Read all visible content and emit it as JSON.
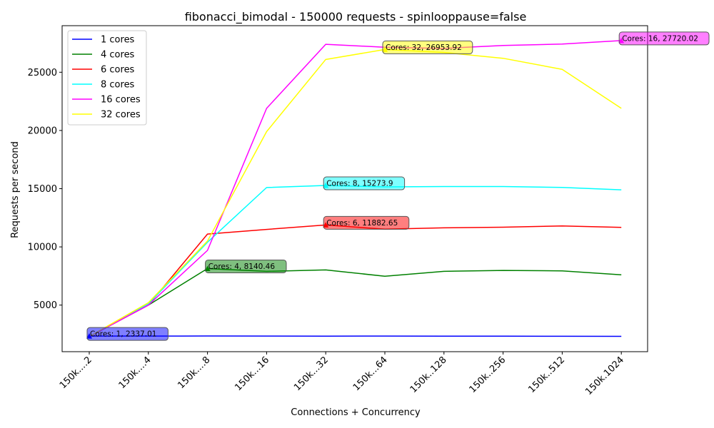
{
  "chart_data": {
    "type": "line",
    "title": "fibonacci_bimodal - 150000 requests - spinlooppause=false",
    "xlabel": "Connections + Concurrency",
    "ylabel": "Requests per second",
    "categories": [
      "150k....2",
      "150k....4",
      "150k....8",
      "150k...16",
      "150k...32",
      "150k...64",
      "150k..128",
      "150k..256",
      "150k..512",
      "150k.1024"
    ],
    "ylim": [
      1000,
      29000
    ],
    "yticks": [
      5000,
      10000,
      15000,
      20000,
      25000
    ],
    "grid": false,
    "legend_position": "upper-left",
    "series": [
      {
        "name": "1 cores",
        "color": "#0000ff",
        "values": [
          2337.01,
          2340,
          2345,
          2340,
          2335,
          2338,
          2336,
          2330,
          2325,
          2320
        ],
        "annotation": {
          "index": 0,
          "text": "Cores: 1, 2337.01"
        }
      },
      {
        "name": "4 cores",
        "color": "#008000",
        "values": [
          2300,
          5000,
          8140.46,
          7900,
          8020,
          7480,
          7900,
          7980,
          7940,
          7600
        ],
        "annotation": {
          "index": 2,
          "text": "Cores: 4, 8140.46"
        }
      },
      {
        "name": "6 cores",
        "color": "#ff0000",
        "values": [
          2300,
          5000,
          11100,
          11500,
          11882.65,
          11520,
          11640,
          11690,
          11800,
          11680
        ],
        "annotation": {
          "index": 4,
          "text": "Cores: 6, 11882.65"
        }
      },
      {
        "name": "8 cores",
        "color": "#00ffff",
        "values": [
          2300,
          5100,
          10400,
          15100,
          15273.9,
          15150,
          15180,
          15180,
          15110,
          14900
        ],
        "annotation": {
          "index": 4,
          "text": "Cores: 8, 15273.9"
        }
      },
      {
        "name": "16 cores",
        "color": "#ff00ff",
        "values": [
          2300,
          5000,
          9700,
          21900,
          27400,
          27150,
          27050,
          27300,
          27420,
          27720.02
        ],
        "annotation": {
          "index": 9,
          "text": "Cores: 16, 27720.02"
        }
      },
      {
        "name": "32 cores",
        "color": "#ffff00",
        "values": [
          2300,
          5200,
          10500,
          19900,
          26100,
          26953.92,
          26700,
          26200,
          25250,
          21900
        ],
        "annotation": {
          "index": 5,
          "text": "Cores: 32, 26953.92"
        }
      }
    ]
  }
}
